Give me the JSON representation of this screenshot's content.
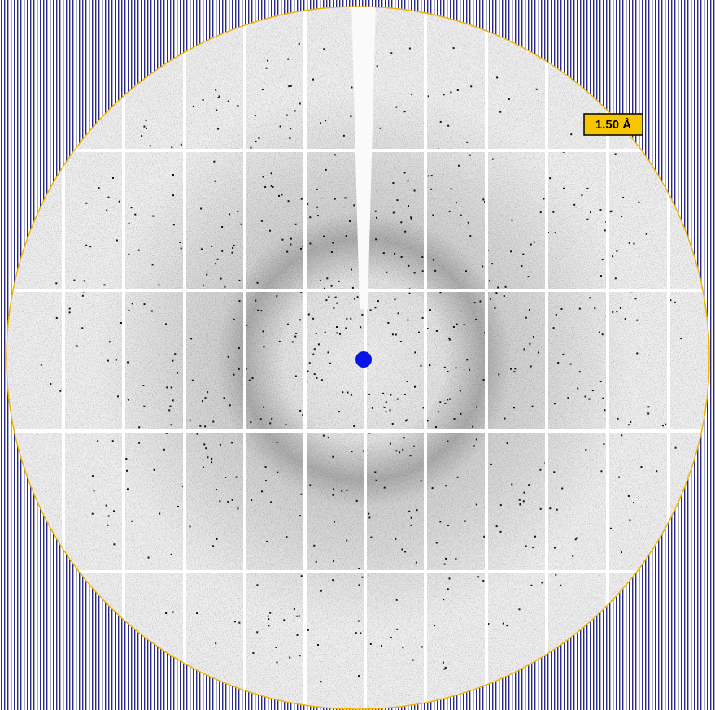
{
  "resolution_label": "1.50 Å"
}
